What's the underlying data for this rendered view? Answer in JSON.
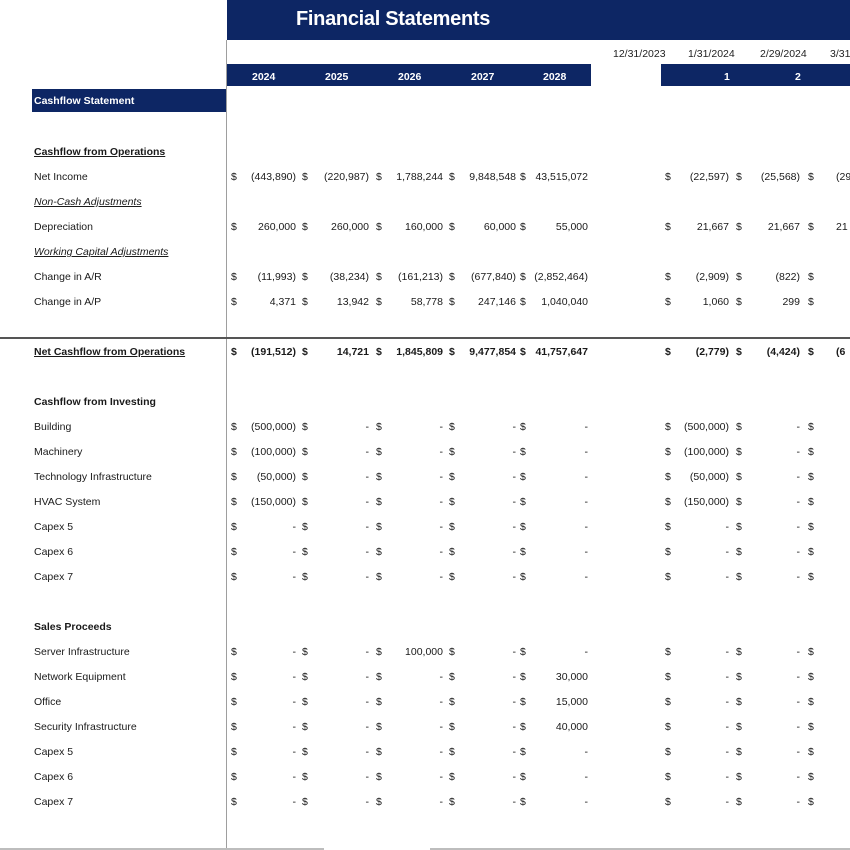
{
  "title": "Financial Statements",
  "years": [
    "2024",
    "2025",
    "2026",
    "2027",
    "2028"
  ],
  "months": {
    "dates": [
      "12/31/2023",
      "1/31/2024",
      "2/29/2024",
      "3/31/"
    ],
    "numbers": [
      "1",
      "2"
    ]
  },
  "section_title": "Cashflow Statement",
  "groups": {
    "operations": "Cashflow from Operations",
    "non_cash": "Non-Cash Adjustments",
    "working_capital": "Working Capital Adjustments",
    "investing": "Cashflow from Investing",
    "sales": "Sales Proceeds"
  },
  "currency_symbol": "$",
  "rows": [
    {
      "label": "Net Income",
      "style": "normal",
      "values": [
        "(443,890)",
        "(220,987)",
        "1,788,244",
        "9,848,548",
        "43,515,072"
      ],
      "months": [
        "(22,597)",
        "(25,568)",
        "(29"
      ]
    },
    {
      "label": "Depreciation",
      "style": "normal",
      "values": [
        "260,000",
        "260,000",
        "160,000",
        "60,000",
        "55,000"
      ],
      "months": [
        "21,667",
        "21,667",
        "21"
      ]
    },
    {
      "label": "Change in A/R",
      "style": "normal",
      "values": [
        "(11,993)",
        "(38,234)",
        "(161,213)",
        "(677,840)",
        "(2,852,464)"
      ],
      "months": [
        "(2,909)",
        "(822)",
        ""
      ]
    },
    {
      "label": "Change in A/P",
      "style": "normal",
      "values": [
        "4,371",
        "13,942",
        "58,778",
        "247,146",
        "1,040,040"
      ],
      "months": [
        "1,060",
        "299",
        ""
      ]
    },
    {
      "label": "Net Cashflow from Operations",
      "style": "total",
      "values": [
        "(191,512)",
        "14,721",
        "1,845,809",
        "9,477,854",
        "41,757,647"
      ],
      "months": [
        "(2,779)",
        "(4,424)",
        "(6"
      ]
    },
    {
      "label": "Building",
      "style": "normal",
      "values": [
        "(500,000)",
        "-",
        "-",
        "-",
        "-"
      ],
      "months": [
        "(500,000)",
        "-",
        ""
      ]
    },
    {
      "label": "Machinery",
      "style": "normal",
      "values": [
        "(100,000)",
        "-",
        "-",
        "-",
        "-"
      ],
      "months": [
        "(100,000)",
        "-",
        ""
      ]
    },
    {
      "label": "Technology Infrastructure",
      "style": "normal",
      "values": [
        "(50,000)",
        "-",
        "-",
        "-",
        "-"
      ],
      "months": [
        "(50,000)",
        "-",
        ""
      ]
    },
    {
      "label": "HVAC System",
      "style": "normal",
      "values": [
        "(150,000)",
        "-",
        "-",
        "-",
        "-"
      ],
      "months": [
        "(150,000)",
        "-",
        ""
      ]
    },
    {
      "label": "Capex 5",
      "style": "normal",
      "values": [
        "-",
        "-",
        "-",
        "-",
        "-"
      ],
      "months": [
        "-",
        "-",
        ""
      ]
    },
    {
      "label": "Capex 6",
      "style": "normal",
      "values": [
        "-",
        "-",
        "-",
        "-",
        "-"
      ],
      "months": [
        "-",
        "-",
        ""
      ]
    },
    {
      "label": "Capex 7",
      "style": "normal",
      "values": [
        "-",
        "-",
        "-",
        "-",
        "-"
      ],
      "months": [
        "-",
        "-",
        ""
      ]
    },
    {
      "label": "Server Infrastructure",
      "style": "normal",
      "values": [
        "-",
        "-",
        "100,000",
        "-",
        "-"
      ],
      "months": [
        "-",
        "-",
        ""
      ]
    },
    {
      "label": "Network Equipment",
      "style": "normal",
      "values": [
        "-",
        "-",
        "-",
        "-",
        "30,000"
      ],
      "months": [
        "-",
        "-",
        ""
      ]
    },
    {
      "label": "Office",
      "style": "normal",
      "values": [
        "-",
        "-",
        "-",
        "-",
        "15,000"
      ],
      "months": [
        "-",
        "-",
        ""
      ]
    },
    {
      "label": "Security Infrastructure",
      "style": "normal",
      "values": [
        "-",
        "-",
        "-",
        "-",
        "40,000"
      ],
      "months": [
        "-",
        "-",
        ""
      ]
    },
    {
      "label": "Capex 5",
      "style": "normal",
      "values": [
        "-",
        "-",
        "-",
        "-",
        "-"
      ],
      "months": [
        "-",
        "-",
        ""
      ]
    },
    {
      "label": "Capex 6",
      "style": "normal",
      "values": [
        "-",
        "-",
        "-",
        "-",
        "-"
      ],
      "months": [
        "-",
        "-",
        ""
      ]
    },
    {
      "label": "Capex 7",
      "style": "normal",
      "values": [
        "-",
        "-",
        "-",
        "-",
        "-"
      ],
      "months": [
        "-",
        "-",
        ""
      ]
    }
  ],
  "colors": {
    "header_navy": "#0d2664",
    "text": "#1a1a1a"
  }
}
